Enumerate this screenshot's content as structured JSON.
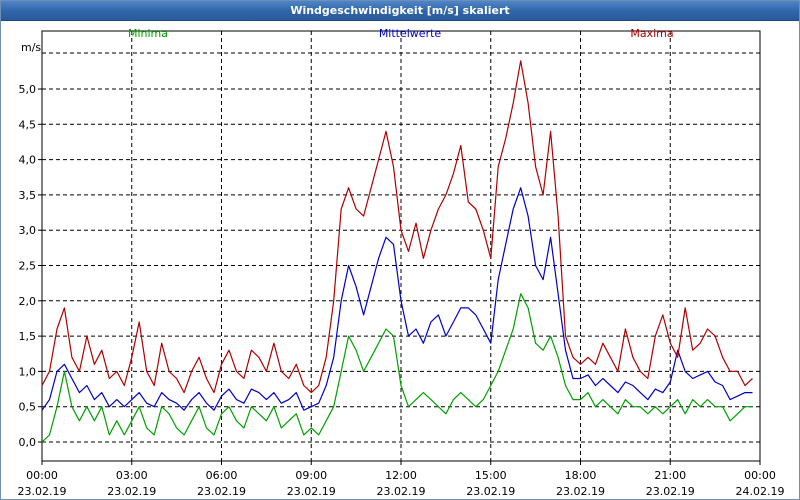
{
  "window": {
    "title": "Windgeschwindigkeit [m/s] skaliert"
  },
  "chart_data": {
    "type": "line",
    "title": "Windgeschwindigkeit [m/s] skaliert",
    "ylabel": "m/s",
    "xlabel": "",
    "ylim": [
      0,
      5.5
    ],
    "xlim_hours": [
      0,
      24
    ],
    "grid": true,
    "legend_position": "top",
    "y_ticks": [
      {
        "value": 0.0,
        "label": "0,0"
      },
      {
        "value": 0.5,
        "label": "0,5"
      },
      {
        "value": 1.0,
        "label": "1,0"
      },
      {
        "value": 1.5,
        "label": "1,5"
      },
      {
        "value": 2.0,
        "label": "2,0"
      },
      {
        "value": 2.5,
        "label": "2,5"
      },
      {
        "value": 3.0,
        "label": "3,0"
      },
      {
        "value": 3.5,
        "label": "3,5"
      },
      {
        "value": 4.0,
        "label": "4,0"
      },
      {
        "value": 4.5,
        "label": "4,5"
      },
      {
        "value": 5.0,
        "label": "5,0"
      }
    ],
    "x_ticks": [
      {
        "hour": 0,
        "time": "00:00",
        "date": "23.02.19"
      },
      {
        "hour": 3,
        "time": "03:00",
        "date": "23.02.19"
      },
      {
        "hour": 6,
        "time": "06:00",
        "date": "23.02.19"
      },
      {
        "hour": 9,
        "time": "09:00",
        "date": "23.02.19"
      },
      {
        "hour": 12,
        "time": "12:00",
        "date": "23.02.19"
      },
      {
        "hour": 15,
        "time": "15:00",
        "date": "23.02.19"
      },
      {
        "hour": 18,
        "time": "18:00",
        "date": "23.02.19"
      },
      {
        "hour": 21,
        "time": "21:00",
        "date": "23.02.19"
      },
      {
        "hour": 24,
        "time": "00:00",
        "date": "24.02.19"
      }
    ],
    "series": [
      {
        "name": "Minima",
        "color": "#00a000",
        "points": [
          [
            0.0,
            0.0
          ],
          [
            0.25,
            0.1
          ],
          [
            0.5,
            0.5
          ],
          [
            0.75,
            1.0
          ],
          [
            1.0,
            0.5
          ],
          [
            1.25,
            0.3
          ],
          [
            1.5,
            0.5
          ],
          [
            1.75,
            0.3
          ],
          [
            2.0,
            0.5
          ],
          [
            2.25,
            0.1
          ],
          [
            2.5,
            0.3
          ],
          [
            2.75,
            0.1
          ],
          [
            3.0,
            0.3
          ],
          [
            3.25,
            0.5
          ],
          [
            3.5,
            0.2
          ],
          [
            3.75,
            0.1
          ],
          [
            4.0,
            0.5
          ],
          [
            4.25,
            0.4
          ],
          [
            4.5,
            0.2
          ],
          [
            4.75,
            0.1
          ],
          [
            5.0,
            0.3
          ],
          [
            5.25,
            0.5
          ],
          [
            5.5,
            0.2
          ],
          [
            5.75,
            0.1
          ],
          [
            6.0,
            0.4
          ],
          [
            6.25,
            0.5
          ],
          [
            6.5,
            0.3
          ],
          [
            6.75,
            0.2
          ],
          [
            7.0,
            0.5
          ],
          [
            7.25,
            0.4
          ],
          [
            7.5,
            0.3
          ],
          [
            7.75,
            0.5
          ],
          [
            8.0,
            0.2
          ],
          [
            8.25,
            0.3
          ],
          [
            8.5,
            0.4
          ],
          [
            8.75,
            0.1
          ],
          [
            9.0,
            0.2
          ],
          [
            9.25,
            0.1
          ],
          [
            9.5,
            0.3
          ],
          [
            9.75,
            0.5
          ],
          [
            10.0,
            1.0
          ],
          [
            10.25,
            1.5
          ],
          [
            10.5,
            1.3
          ],
          [
            10.75,
            1.0
          ],
          [
            11.0,
            1.2
          ],
          [
            11.25,
            1.4
          ],
          [
            11.5,
            1.6
          ],
          [
            11.75,
            1.5
          ],
          [
            12.0,
            0.8
          ],
          [
            12.25,
            0.5
          ],
          [
            12.5,
            0.6
          ],
          [
            12.75,
            0.7
          ],
          [
            13.0,
            0.6
          ],
          [
            13.25,
            0.5
          ],
          [
            13.5,
            0.4
          ],
          [
            13.75,
            0.6
          ],
          [
            14.0,
            0.7
          ],
          [
            14.25,
            0.6
          ],
          [
            14.5,
            0.5
          ],
          [
            14.75,
            0.6
          ],
          [
            15.0,
            0.8
          ],
          [
            15.25,
            1.0
          ],
          [
            15.5,
            1.3
          ],
          [
            15.75,
            1.6
          ],
          [
            16.0,
            2.1
          ],
          [
            16.25,
            1.9
          ],
          [
            16.5,
            1.4
          ],
          [
            16.75,
            1.3
          ],
          [
            17.0,
            1.5
          ],
          [
            17.25,
            1.2
          ],
          [
            17.5,
            0.8
          ],
          [
            17.75,
            0.6
          ],
          [
            18.0,
            0.6
          ],
          [
            18.25,
            0.7
          ],
          [
            18.5,
            0.5
          ],
          [
            18.75,
            0.6
          ],
          [
            19.0,
            0.5
          ],
          [
            19.25,
            0.4
          ],
          [
            19.5,
            0.6
          ],
          [
            19.75,
            0.5
          ],
          [
            20.0,
            0.5
          ],
          [
            20.25,
            0.4
          ],
          [
            20.5,
            0.5
          ],
          [
            20.75,
            0.4
          ],
          [
            21.0,
            0.5
          ],
          [
            21.25,
            0.6
          ],
          [
            21.5,
            0.4
          ],
          [
            21.75,
            0.6
          ],
          [
            22.0,
            0.5
          ],
          [
            22.25,
            0.6
          ],
          [
            22.5,
            0.5
          ],
          [
            22.75,
            0.5
          ],
          [
            23.0,
            0.3
          ],
          [
            23.25,
            0.4
          ],
          [
            23.5,
            0.5
          ],
          [
            23.75,
            0.5
          ]
        ]
      },
      {
        "name": "Mittelwerte",
        "color": "#0000c8",
        "points": [
          [
            0.0,
            0.45
          ],
          [
            0.25,
            0.6
          ],
          [
            0.5,
            1.0
          ],
          [
            0.75,
            1.1
          ],
          [
            1.0,
            0.9
          ],
          [
            1.25,
            0.7
          ],
          [
            1.5,
            0.8
          ],
          [
            1.75,
            0.6
          ],
          [
            2.0,
            0.7
          ],
          [
            2.25,
            0.5
          ],
          [
            2.5,
            0.6
          ],
          [
            2.75,
            0.5
          ],
          [
            3.0,
            0.6
          ],
          [
            3.25,
            0.7
          ],
          [
            3.5,
            0.55
          ],
          [
            3.75,
            0.5
          ],
          [
            4.0,
            0.7
          ],
          [
            4.25,
            0.6
          ],
          [
            4.5,
            0.55
          ],
          [
            4.75,
            0.45
          ],
          [
            5.0,
            0.6
          ],
          [
            5.25,
            0.7
          ],
          [
            5.5,
            0.55
          ],
          [
            5.75,
            0.45
          ],
          [
            6.0,
            0.65
          ],
          [
            6.25,
            0.75
          ],
          [
            6.5,
            0.6
          ],
          [
            6.75,
            0.55
          ],
          [
            7.0,
            0.75
          ],
          [
            7.25,
            0.7
          ],
          [
            7.5,
            0.6
          ],
          [
            7.75,
            0.7
          ],
          [
            8.0,
            0.55
          ],
          [
            8.25,
            0.6
          ],
          [
            8.5,
            0.7
          ],
          [
            8.75,
            0.45
          ],
          [
            9.0,
            0.5
          ],
          [
            9.25,
            0.55
          ],
          [
            9.5,
            0.8
          ],
          [
            9.75,
            1.2
          ],
          [
            10.0,
            2.0
          ],
          [
            10.25,
            2.5
          ],
          [
            10.5,
            2.2
          ],
          [
            10.75,
            1.8
          ],
          [
            11.0,
            2.2
          ],
          [
            11.25,
            2.6
          ],
          [
            11.5,
            2.9
          ],
          [
            11.75,
            2.8
          ],
          [
            12.0,
            2.0
          ],
          [
            12.25,
            1.5
          ],
          [
            12.5,
            1.6
          ],
          [
            12.75,
            1.4
          ],
          [
            13.0,
            1.7
          ],
          [
            13.25,
            1.8
          ],
          [
            13.5,
            1.5
          ],
          [
            13.75,
            1.7
          ],
          [
            14.0,
            1.9
          ],
          [
            14.25,
            1.9
          ],
          [
            14.5,
            1.8
          ],
          [
            14.75,
            1.6
          ],
          [
            15.0,
            1.4
          ],
          [
            15.25,
            2.3
          ],
          [
            15.5,
            2.8
          ],
          [
            15.75,
            3.3
          ],
          [
            16.0,
            3.6
          ],
          [
            16.25,
            3.2
          ],
          [
            16.5,
            2.5
          ],
          [
            16.75,
            2.3
          ],
          [
            17.0,
            2.9
          ],
          [
            17.25,
            2.1
          ],
          [
            17.5,
            1.3
          ],
          [
            17.75,
            0.9
          ],
          [
            18.0,
            0.9
          ],
          [
            18.25,
            0.95
          ],
          [
            18.5,
            0.8
          ],
          [
            18.75,
            0.9
          ],
          [
            19.0,
            0.8
          ],
          [
            19.25,
            0.7
          ],
          [
            19.5,
            0.85
          ],
          [
            19.75,
            0.8
          ],
          [
            20.0,
            0.7
          ],
          [
            20.25,
            0.6
          ],
          [
            20.5,
            0.75
          ],
          [
            20.75,
            0.7
          ],
          [
            21.0,
            0.85
          ],
          [
            21.25,
            1.3
          ],
          [
            21.5,
            1.0
          ],
          [
            21.75,
            0.9
          ],
          [
            22.0,
            0.95
          ],
          [
            22.25,
            1.0
          ],
          [
            22.5,
            0.85
          ],
          [
            22.75,
            0.8
          ],
          [
            23.0,
            0.6
          ],
          [
            23.25,
            0.65
          ],
          [
            23.5,
            0.7
          ],
          [
            23.75,
            0.7
          ]
        ]
      },
      {
        "name": "Maxima",
        "color": "#b00000",
        "points": [
          [
            0.0,
            0.8
          ],
          [
            0.25,
            1.0
          ],
          [
            0.5,
            1.6
          ],
          [
            0.75,
            1.9
          ],
          [
            1.0,
            1.2
          ],
          [
            1.25,
            1.0
          ],
          [
            1.5,
            1.5
          ],
          [
            1.75,
            1.1
          ],
          [
            2.0,
            1.3
          ],
          [
            2.25,
            0.9
          ],
          [
            2.5,
            1.0
          ],
          [
            2.75,
            0.8
          ],
          [
            3.0,
            1.2
          ],
          [
            3.25,
            1.7
          ],
          [
            3.5,
            1.0
          ],
          [
            3.75,
            0.8
          ],
          [
            4.0,
            1.4
          ],
          [
            4.25,
            1.0
          ],
          [
            4.5,
            0.9
          ],
          [
            4.75,
            0.7
          ],
          [
            5.0,
            1.0
          ],
          [
            5.25,
            1.2
          ],
          [
            5.5,
            0.9
          ],
          [
            5.75,
            0.7
          ],
          [
            6.0,
            1.1
          ],
          [
            6.25,
            1.3
          ],
          [
            6.5,
            1.0
          ],
          [
            6.75,
            0.9
          ],
          [
            7.0,
            1.3
          ],
          [
            7.25,
            1.2
          ],
          [
            7.5,
            1.0
          ],
          [
            7.75,
            1.4
          ],
          [
            8.0,
            1.0
          ],
          [
            8.25,
            0.9
          ],
          [
            8.5,
            1.1
          ],
          [
            8.75,
            0.8
          ],
          [
            9.0,
            0.7
          ],
          [
            9.25,
            0.8
          ],
          [
            9.5,
            1.2
          ],
          [
            9.75,
            2.0
          ],
          [
            10.0,
            3.3
          ],
          [
            10.25,
            3.6
          ],
          [
            10.5,
            3.3
          ],
          [
            10.75,
            3.2
          ],
          [
            11.0,
            3.6
          ],
          [
            11.25,
            4.0
          ],
          [
            11.5,
            4.4
          ],
          [
            11.75,
            3.9
          ],
          [
            12.0,
            3.0
          ],
          [
            12.25,
            2.7
          ],
          [
            12.5,
            3.1
          ],
          [
            12.75,
            2.6
          ],
          [
            13.0,
            3.0
          ],
          [
            13.25,
            3.3
          ],
          [
            13.5,
            3.5
          ],
          [
            13.75,
            3.8
          ],
          [
            14.0,
            4.2
          ],
          [
            14.25,
            3.4
          ],
          [
            14.5,
            3.3
          ],
          [
            14.75,
            3.0
          ],
          [
            15.0,
            2.6
          ],
          [
            15.25,
            3.9
          ],
          [
            15.5,
            4.3
          ],
          [
            15.75,
            4.8
          ],
          [
            16.0,
            5.4
          ],
          [
            16.25,
            4.8
          ],
          [
            16.5,
            3.9
          ],
          [
            16.75,
            3.5
          ],
          [
            17.0,
            4.4
          ],
          [
            17.25,
            3.2
          ],
          [
            17.5,
            1.5
          ],
          [
            17.75,
            1.2
          ],
          [
            18.0,
            1.1
          ],
          [
            18.25,
            1.2
          ],
          [
            18.5,
            1.1
          ],
          [
            18.75,
            1.4
          ],
          [
            19.0,
            1.2
          ],
          [
            19.25,
            1.0
          ],
          [
            19.5,
            1.6
          ],
          [
            19.75,
            1.2
          ],
          [
            20.0,
            1.0
          ],
          [
            20.25,
            0.9
          ],
          [
            20.5,
            1.5
          ],
          [
            20.75,
            1.8
          ],
          [
            21.0,
            1.4
          ],
          [
            21.25,
            1.2
          ],
          [
            21.5,
            1.9
          ],
          [
            21.75,
            1.3
          ],
          [
            22.0,
            1.4
          ],
          [
            22.25,
            1.6
          ],
          [
            22.5,
            1.5
          ],
          [
            22.75,
            1.2
          ],
          [
            23.0,
            1.0
          ],
          [
            23.25,
            1.0
          ],
          [
            23.5,
            0.8
          ],
          [
            23.75,
            0.9
          ]
        ]
      }
    ]
  }
}
